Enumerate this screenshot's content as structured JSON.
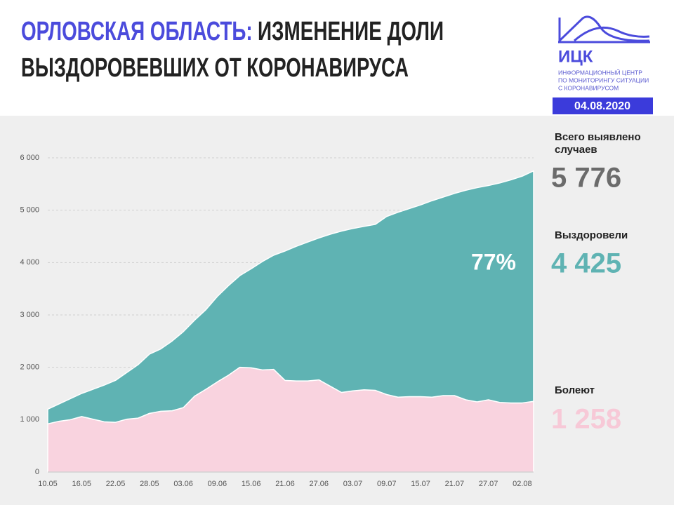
{
  "header": {
    "title_prefix": "ОРЛОВСКАЯ ОБЛАСТЬ:",
    "title_line1": "ИЗМЕНЕНИЕ ДОЛИ",
    "title_line2": "ВЫЗДОРОВЕВШИХ ОТ КОРОНАВИРУСА",
    "logo": "ИЦК",
    "logo_lines": [
      "ИНФОРМАЦИОННЫЙ ЦЕНТР",
      "ПО МОНИТОРИНГУ СИТУАЦИИ",
      "С КОРОНАВИРУСОМ"
    ],
    "date": "04.08.2020"
  },
  "stats": [
    {
      "label_lines": [
        "Всего выявлено",
        "случаев"
      ],
      "value": 5776,
      "value_label": "5 776",
      "color": "#6b6b6b"
    },
    {
      "label_lines": [
        "Выздоровели"
      ],
      "value": 4425,
      "value_label": "4 425",
      "color": "#5fb3b3"
    },
    {
      "label_lines": [
        "Болеют"
      ],
      "value": 1258,
      "value_label": "1 258",
      "color": "#f7c9d7"
    }
  ],
  "chart_data": {
    "type": "stacked_area",
    "annotation": "77%",
    "categories": [
      "10.05",
      null,
      null,
      "16.05",
      null,
      null,
      "22.05",
      null,
      null,
      "28.05",
      null,
      null,
      "03.06",
      null,
      null,
      "09.06",
      null,
      null,
      "15.06",
      null,
      null,
      "21.06",
      null,
      null,
      "27.06",
      null,
      null,
      "03.07",
      null,
      null,
      "09.07",
      null,
      null,
      "15.07",
      null,
      null,
      "21.07",
      null,
      null,
      "27.07",
      null,
      null,
      "02.08",
      null
    ],
    "series": [
      {
        "name": "Болеют",
        "color": "#f9d3df",
        "values": [
          920,
          970,
          1000,
          1060,
          1010,
          960,
          950,
          1010,
          1030,
          1120,
          1160,
          1170,
          1230,
          1450,
          1580,
          1720,
          1850,
          2000,
          1990,
          1950,
          1960,
          1750,
          1740,
          1740,
          1760,
          1640,
          1520,
          1550,
          1570,
          1560,
          1480,
          1430,
          1440,
          1440,
          1430,
          1460,
          1460,
          1380,
          1340,
          1380,
          1330,
          1320,
          1320,
          1350
        ]
      },
      {
        "name": "Выздоровели",
        "color": "#5fb3b3",
        "values": [
          280,
          330,
          400,
          440,
          570,
          700,
          800,
          890,
          1020,
          1130,
          1190,
          1330,
          1450,
          1450,
          1520,
          1630,
          1710,
          1750,
          1890,
          2070,
          2180,
          2470,
          2570,
          2650,
          2710,
          2900,
          3080,
          3100,
          3120,
          3170,
          3400,
          3530,
          3590,
          3660,
          3750,
          3790,
          3860,
          4000,
          4090,
          4090,
          4190,
          4260,
          4330,
          4400
        ]
      }
    ],
    "ylim": [
      0,
      6000
    ],
    "yticks": [
      0,
      {
        "value": 1000,
        "label": "1 000"
      },
      {
        "value": 2000,
        "label": "2 000"
      },
      {
        "value": 3000,
        "label": "3 000"
      },
      {
        "value": 4000,
        "label": "4 000"
      },
      {
        "value": 5000,
        "label": "5 000"
      },
      {
        "value": 6000,
        "label": "6 000"
      }
    ],
    "grid": true
  }
}
